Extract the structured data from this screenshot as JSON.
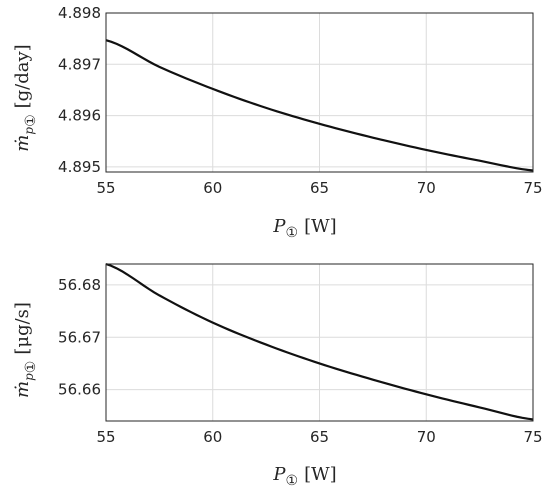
{
  "chart_data": [
    {
      "type": "line",
      "x": [
        55,
        57.5,
        60,
        62.5,
        65,
        67.5,
        70,
        72.5,
        75
      ],
      "series": [
        {
          "values": [
            4.89747,
            4.89695,
            4.89652,
            4.89615,
            4.89584,
            4.89557,
            4.89533,
            4.89512,
            4.89493
          ]
        }
      ],
      "xlim": [
        55,
        75
      ],
      "ylim": [
        4.8949,
        4.898
      ],
      "xticks": [
        "55",
        "60",
        "65",
        "70",
        "75"
      ],
      "yticks": [
        "4.895",
        "4.896",
        "4.897",
        "4.898"
      ],
      "xlabel": {
        "main": "P",
        "sub": "①",
        "unit": "[W]"
      },
      "ylabel": {
        "main": "ṁ",
        "sub": "p",
        "circ": "①",
        "unit": "[g/day]"
      },
      "grid": true
    },
    {
      "type": "line",
      "x": [
        55,
        57.5,
        60,
        62.5,
        65,
        67.5,
        70,
        72.5,
        75
      ],
      "series": [
        {
          "values": [
            56.684,
            56.678,
            56.6728,
            56.6686,
            56.665,
            56.6619,
            56.6591,
            56.6566,
            56.6543
          ]
        }
      ],
      "xlim": [
        55,
        75
      ],
      "ylim": [
        56.654,
        56.684
      ],
      "xticks": [
        "55",
        "60",
        "65",
        "70",
        "75"
      ],
      "yticks": [
        "56.66",
        "56.67",
        "56.68"
      ],
      "xlabel": {
        "main": "P",
        "sub": "①",
        "unit": "[W]"
      },
      "ylabel": {
        "main": "ṁ",
        "sub": "p",
        "circ": "①",
        "unit": "[μg/s]"
      },
      "grid": true
    }
  ]
}
